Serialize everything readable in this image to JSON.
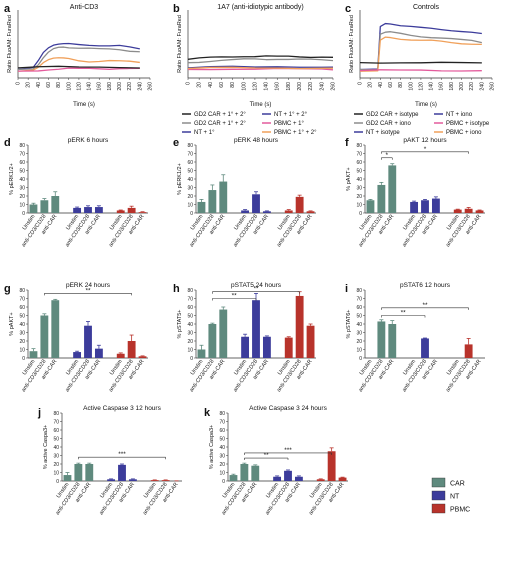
{
  "colors": {
    "CAR": "#5f8a7e",
    "NT": "#3c3c9b",
    "PBMC": "#b8332b",
    "black": "#222222",
    "grey": "#8c8c8c",
    "orange": "#f0a05a",
    "pink": "#e35b9c"
  },
  "legend_main": [
    {
      "name": "CAR",
      "color": "#5f8a7e"
    },
    {
      "name": "NT",
      "color": "#3c3c9b"
    },
    {
      "name": "PBMC",
      "color": "#b8332b"
    }
  ],
  "chart_data": [
    {
      "type": "line",
      "panel": "a",
      "title": "Anti-CD3",
      "xlabel": "Time (s)",
      "ylabel": "Ratio FluoAM: FuraRed",
      "xlim": [
        0,
        260
      ],
      "xticks": [
        0,
        20,
        40,
        60,
        80,
        100,
        120,
        140,
        160,
        180,
        200,
        220,
        240,
        260
      ],
      "ylim": [
        0,
        2.0
      ],
      "series": [
        {
          "color": "#3c3c9b",
          "x": [
            0,
            30,
            40,
            50,
            60,
            70,
            80,
            90,
            100,
            120,
            140,
            160,
            180,
            200,
            220,
            240
          ],
          "y": [
            0.25,
            0.3,
            0.5,
            0.75,
            0.9,
            0.98,
            1.0,
            1.0,
            1.0,
            0.98,
            0.97,
            0.96,
            0.95,
            0.95,
            0.9,
            0.85
          ]
        },
        {
          "color": "#8c8c8c",
          "x": [
            0,
            30,
            40,
            50,
            60,
            70,
            80,
            90,
            100,
            120,
            140,
            160,
            180,
            200,
            220,
            240
          ],
          "y": [
            0.25,
            0.28,
            0.4,
            0.6,
            0.75,
            0.85,
            0.9,
            0.92,
            0.9,
            0.88,
            0.87,
            0.85,
            0.85,
            0.84,
            0.8,
            0.78
          ]
        },
        {
          "color": "#f0a05a",
          "x": [
            0,
            30,
            40,
            50,
            60,
            70,
            80,
            90,
            100,
            120,
            140,
            160,
            180,
            200,
            220,
            240
          ],
          "y": [
            0.2,
            0.22,
            0.3,
            0.45,
            0.55,
            0.6,
            0.6,
            0.58,
            0.56,
            0.5,
            0.48,
            0.5,
            0.52,
            0.5,
            0.48,
            0.45
          ]
        },
        {
          "color": "#e35b9c",
          "x": [
            0,
            40,
            60,
            80,
            100,
            120,
            140,
            160,
            180,
            200,
            220,
            240
          ],
          "y": [
            0.2,
            0.22,
            0.25,
            0.26,
            0.28,
            0.27,
            0.28,
            0.28,
            0.27,
            0.28,
            0.27,
            0.27
          ]
        },
        {
          "color": "#222222",
          "x": [
            0,
            40,
            80,
            120,
            160,
            200,
            240
          ],
          "y": [
            0.3,
            0.32,
            0.33,
            0.32,
            0.33,
            0.32,
            0.3
          ]
        }
      ]
    },
    {
      "type": "line",
      "panel": "b",
      "title": "1A7 (anti-idiotypic antibody)",
      "xlabel": "Time (s)",
      "ylabel": "Ratio FluoAM: FuraRed",
      "xlim": [
        0,
        260
      ],
      "xticks": [
        0,
        20,
        40,
        60,
        80,
        100,
        120,
        140,
        160,
        180,
        200,
        220,
        240,
        260
      ],
      "ylim": [
        0,
        2.0
      ],
      "series": [
        {
          "color": "#222222",
          "x": [
            0,
            20,
            40,
            60,
            80,
            100,
            120,
            140,
            160,
            180,
            200,
            220,
            240,
            260
          ],
          "y": [
            0.55,
            0.58,
            0.6,
            0.62,
            0.63,
            0.64,
            0.63,
            0.64,
            0.63,
            0.64,
            0.63,
            0.62,
            0.62,
            0.6
          ]
        },
        {
          "color": "#8c8c8c",
          "x": [
            0,
            20,
            40,
            60,
            80,
            100,
            120,
            140,
            160,
            180,
            200,
            220,
            240,
            260
          ],
          "y": [
            0.45,
            0.47,
            0.5,
            0.52,
            0.53,
            0.55,
            0.56,
            0.55,
            0.56,
            0.55,
            0.55,
            0.54,
            0.53,
            0.52
          ]
        },
        {
          "color": "#3c3c9b",
          "x": [
            0,
            40,
            80,
            120,
            160,
            200,
            240,
            260
          ],
          "y": [
            0.3,
            0.32,
            0.33,
            0.32,
            0.34,
            0.33,
            0.32,
            0.31
          ]
        },
        {
          "color": "#e35b9c",
          "x": [
            0,
            40,
            80,
            120,
            160,
            200,
            240,
            260
          ],
          "y": [
            0.25,
            0.26,
            0.27,
            0.26,
            0.27,
            0.26,
            0.26,
            0.25
          ]
        },
        {
          "color": "#f0a05a",
          "x": [
            0,
            40,
            80,
            120,
            160,
            200,
            240,
            260
          ],
          "y": [
            0.28,
            0.3,
            0.3,
            0.29,
            0.3,
            0.29,
            0.29,
            0.28
          ]
        }
      ],
      "legend": [
        {
          "name": "GD2 CAR + 1° + 2°",
          "color": "#222222"
        },
        {
          "name": "NT + 1° + 2°",
          "color": "#3c3c9b"
        },
        {
          "name": "GD2 CAR + 1° + 2°",
          "color": "#8c8c8c"
        },
        {
          "name": "PBMC + 1°",
          "color": "#e35b9c"
        },
        {
          "name": "NT + 1°",
          "color": "#3c3c9b"
        },
        {
          "name": "PBMC + 1° + 2°",
          "color": "#f0a05a"
        }
      ]
    },
    {
      "type": "line",
      "panel": "c",
      "title": "Controls",
      "xlabel": "Time (s)",
      "ylabel": "Ratio FluoAM: FuraRed",
      "xlim": [
        0,
        260
      ],
      "xticks": [
        0,
        20,
        40,
        60,
        80,
        100,
        120,
        140,
        160,
        180,
        200,
        220,
        240,
        260
      ],
      "ylim": [
        0,
        2.0
      ],
      "series": [
        {
          "color": "#3c3c9b",
          "x": [
            0,
            35,
            40,
            50,
            60,
            80,
            100,
            120,
            140,
            160,
            180,
            200,
            220,
            240
          ],
          "y": [
            0.25,
            0.25,
            1.5,
            1.6,
            1.6,
            1.55,
            1.52,
            1.48,
            1.45,
            1.42,
            1.4,
            1.38,
            1.35,
            1.3
          ]
        },
        {
          "color": "#8c8c8c",
          "x": [
            0,
            35,
            40,
            50,
            60,
            80,
            100,
            120,
            140,
            160,
            180,
            200,
            220,
            240
          ],
          "y": [
            0.25,
            0.25,
            1.3,
            1.35,
            1.35,
            1.3,
            1.25,
            1.22,
            1.2,
            1.18,
            1.15,
            1.12,
            1.1,
            1.05
          ]
        },
        {
          "color": "#f0a05a",
          "x": [
            0,
            35,
            40,
            50,
            60,
            80,
            100,
            120,
            140,
            160,
            180,
            200,
            220,
            240
          ],
          "y": [
            0.2,
            0.2,
            1.1,
            1.2,
            1.2,
            1.15,
            1.12,
            1.1,
            1.1,
            1.08,
            1.05,
            1.02,
            1.0,
            0.98
          ]
        },
        {
          "color": "#222222",
          "x": [
            0,
            40,
            80,
            120,
            160,
            200,
            240
          ],
          "y": [
            0.45,
            0.45,
            0.46,
            0.45,
            0.45,
            0.44,
            0.44
          ]
        },
        {
          "color": "#e35b9c",
          "x": [
            0,
            40,
            80,
            120,
            160,
            200,
            240
          ],
          "y": [
            0.22,
            0.23,
            0.22,
            0.23,
            0.22,
            0.22,
            0.22
          ]
        }
      ],
      "legend": [
        {
          "name": "GD2 CAR + isotype",
          "color": "#222222"
        },
        {
          "name": "NT + iono",
          "color": "#3c3c9b"
        },
        {
          "name": "GD2 CAR + iono",
          "color": "#8c8c8c"
        },
        {
          "name": "PBMC + isotype",
          "color": "#e35b9c"
        },
        {
          "name": "NT + isotype",
          "color": "#3c3c9b"
        },
        {
          "name": "PBMC + iono",
          "color": "#f0a05a"
        }
      ]
    },
    {
      "type": "bar",
      "panel": "d",
      "title": "pERK 6 hours",
      "ylabel": "% pERK1/2+",
      "ylim": [
        0,
        80
      ],
      "yticks": [
        0,
        10,
        20,
        30,
        40,
        50,
        60,
        70,
        80
      ],
      "categories": [
        "Unstim",
        "anti-CD3/CD28",
        "anti-CAR",
        "Unstim",
        "anti-CD3/CD28",
        "anti-CAR",
        "Unstim",
        "anti-CD3/CD28",
        "anti-CAR"
      ],
      "groups": [
        "CAR",
        "CAR",
        "CAR",
        "NT",
        "NT",
        "NT",
        "PBMC",
        "PBMC",
        "PBMC"
      ],
      "values": [
        10,
        15,
        20,
        6,
        7,
        7,
        3,
        6,
        1
      ],
      "errors": [
        1.5,
        2,
        5,
        1,
        1.5,
        1.5,
        0.5,
        2,
        0.5
      ],
      "significance": []
    },
    {
      "type": "bar",
      "panel": "e",
      "title": "pERK 48 hours",
      "ylabel": "% pERK1/2+",
      "ylim": [
        0,
        80
      ],
      "yticks": [
        0,
        10,
        20,
        30,
        40,
        50,
        60,
        70,
        80
      ],
      "categories": [
        "Unstim",
        "anti-CD3/CD28",
        "anti-CAR",
        "Unstim",
        "anti-CD3/CD28",
        "anti-CAR",
        "Unstim",
        "anti-CD3/CD28",
        "anti-CAR"
      ],
      "groups": [
        "CAR",
        "CAR",
        "CAR",
        "NT",
        "NT",
        "NT",
        "PBMC",
        "PBMC",
        "PBMC"
      ],
      "values": [
        13,
        27,
        37,
        3,
        22,
        2,
        3,
        19,
        2
      ],
      "errors": [
        3,
        6,
        8,
        1,
        3,
        0.5,
        1,
        2,
        0.5
      ],
      "significance": []
    },
    {
      "type": "bar",
      "panel": "f",
      "title": "pAKT 12 hours",
      "ylabel": "% pAKT+",
      "ylim": [
        0,
        80
      ],
      "yticks": [
        0,
        10,
        20,
        30,
        40,
        50,
        60,
        70,
        80
      ],
      "categories": [
        "Unstim",
        "anti-CD3/CD28",
        "anti-CAR",
        "Unstim",
        "anti-CD3/CD28",
        "anti-CAR",
        "Unstim",
        "anti-CD3/CD28",
        "anti-CAR"
      ],
      "groups": [
        "CAR",
        "CAR",
        "CAR",
        "NT",
        "NT",
        "NT",
        "PBMC",
        "PBMC",
        "PBMC"
      ],
      "values": [
        15,
        33,
        56,
        13,
        15,
        17,
        4,
        5,
        3
      ],
      "errors": [
        1,
        3,
        2,
        1,
        1,
        2,
        0.5,
        1.5,
        0.5
      ],
      "significance": [
        {
          "from": 1,
          "to": 2,
          "label": "*",
          "y": 65
        },
        {
          "from": 1,
          "to": 7,
          "label": "*",
          "y": 72
        }
      ]
    },
    {
      "type": "bar",
      "panel": "g",
      "title": "pERK 24 hours",
      "ylabel": "% pAKT+",
      "ylim": [
        0,
        80
      ],
      "yticks": [
        0,
        10,
        20,
        30,
        40,
        50,
        60,
        70,
        80
      ],
      "categories": [
        "Unstim",
        "anti-CD3/CD28",
        "anti-CAR",
        "Unstim",
        "anti-CD3/CD28",
        "anti-CAR",
        "Unstim",
        "anti-CD3/CD28",
        "anti-CAR"
      ],
      "groups": [
        "CAR",
        "CAR",
        "CAR",
        "NT",
        "NT",
        "NT",
        "PBMC",
        "PBMC",
        "PBMC"
      ],
      "values": [
        8,
        50,
        68,
        7,
        38,
        11,
        5,
        20,
        2
      ],
      "errors": [
        3,
        2,
        1,
        1,
        5,
        4,
        1,
        7,
        0.5
      ],
      "significance": [
        {
          "from": 1,
          "to": 7,
          "label": "**",
          "y": 76
        }
      ]
    },
    {
      "type": "bar",
      "panel": "h",
      "title": "pSTAT5 24 hours",
      "ylabel": "% pSTAT5+",
      "ylim": [
        0,
        80
      ],
      "yticks": [
        0,
        10,
        20,
        30,
        40,
        50,
        60,
        70,
        80
      ],
      "categories": [
        "Unstim",
        "anti-CD3/CD28",
        "anti-CAR",
        "Unstim",
        "anti-CD3/CD28",
        "anti-CAR",
        "Unstim",
        "anti-CD3/CD28",
        "anti-CAR"
      ],
      "groups": [
        "CAR",
        "CAR",
        "CAR",
        "NT",
        "NT",
        "NT",
        "PBMC",
        "PBMC",
        "PBMC"
      ],
      "values": [
        10,
        40,
        57,
        25,
        68,
        25,
        24,
        73,
        38
      ],
      "errors": [
        5,
        1,
        3,
        3,
        8,
        1,
        1,
        5,
        2
      ],
      "significance": [
        {
          "from": 1,
          "to": 4,
          "label": "**",
          "y": 70
        },
        {
          "from": 1,
          "to": 7,
          "label": "**",
          "y": 78
        }
      ]
    },
    {
      "type": "bar",
      "panel": "i",
      "title": "pSTAT6 12 hours",
      "ylabel": "% pSTAT6+",
      "ylim": [
        0,
        80
      ],
      "yticks": [
        0,
        10,
        20,
        30,
        40,
        50,
        60,
        70,
        80
      ],
      "categories": [
        "Unstim",
        "anti-CD3/CD28",
        "anti-CAR",
        "Unstim",
        "anti-CD3/CD28",
        "anti-CAR",
        "Unstim",
        "anti-CD3/CD28",
        "anti-CAR"
      ],
      "groups": [
        "CAR",
        "CAR",
        "CAR",
        "NT",
        "NT",
        "NT",
        "PBMC",
        "PBMC",
        "PBMC"
      ],
      "values": [
        0,
        43,
        40,
        0,
        23,
        0,
        0,
        16,
        0
      ],
      "errors": [
        0,
        2,
        4,
        0,
        0.5,
        0,
        0,
        7,
        0
      ],
      "significance": [
        {
          "from": 1,
          "to": 4,
          "label": "**",
          "y": 50
        },
        {
          "from": 1,
          "to": 7,
          "label": "**",
          "y": 59
        }
      ]
    },
    {
      "type": "bar",
      "panel": "j",
      "title": "Active Caspase 3 12 hours",
      "ylabel": "% active Caspa3+",
      "ylim": [
        0,
        80
      ],
      "yticks": [
        0,
        10,
        20,
        30,
        40,
        50,
        60,
        70,
        80
      ],
      "categories": [
        "Unstim",
        "anti-CD3/CD28",
        "anti-CAR",
        "Unstim",
        "anti-CD3/CD28",
        "anti-CAR",
        "Unstim",
        "anti-CD3/CD28",
        "anti-CAR"
      ],
      "groups": [
        "CAR",
        "CAR",
        "CAR",
        "NT",
        "NT",
        "NT",
        "PBMC",
        "PBMC",
        "PBMC"
      ],
      "values": [
        7,
        20,
        20,
        2,
        19,
        2,
        1,
        1,
        0
      ],
      "errors": [
        3,
        1,
        1,
        0.5,
        1,
        0.5,
        0.3,
        0.3,
        0.2
      ],
      "significance": [
        {
          "from": 1,
          "to": 7,
          "label": "***",
          "y": 28
        }
      ]
    },
    {
      "type": "bar",
      "panel": "k",
      "title": "Active Caspase 3 24 hours",
      "ylabel": "% active Caspa3+",
      "ylim": [
        0,
        80
      ],
      "yticks": [
        0,
        10,
        20,
        30,
        40,
        50,
        60,
        70,
        80
      ],
      "categories": [
        "Unstim",
        "anti-CD3/CD28",
        "anti-CAR",
        "Unstim",
        "anti-CD3/CD28",
        "anti-CAR",
        "Unstim",
        "anti-CD3/CD28",
        "anti-CAR"
      ],
      "groups": [
        "CAR",
        "CAR",
        "CAR",
        "NT",
        "NT",
        "NT",
        "PBMC",
        "PBMC",
        "PBMC"
      ],
      "values": [
        7,
        20,
        18,
        5,
        12,
        5,
        2,
        35,
        4
      ],
      "errors": [
        1,
        1,
        1,
        1,
        1,
        1,
        0.5,
        4,
        0.5
      ],
      "significance": [
        {
          "from": 1,
          "to": 4,
          "label": "**",
          "y": 27
        },
        {
          "from": 1,
          "to": 7,
          "label": "***",
          "y": 33
        }
      ]
    }
  ]
}
